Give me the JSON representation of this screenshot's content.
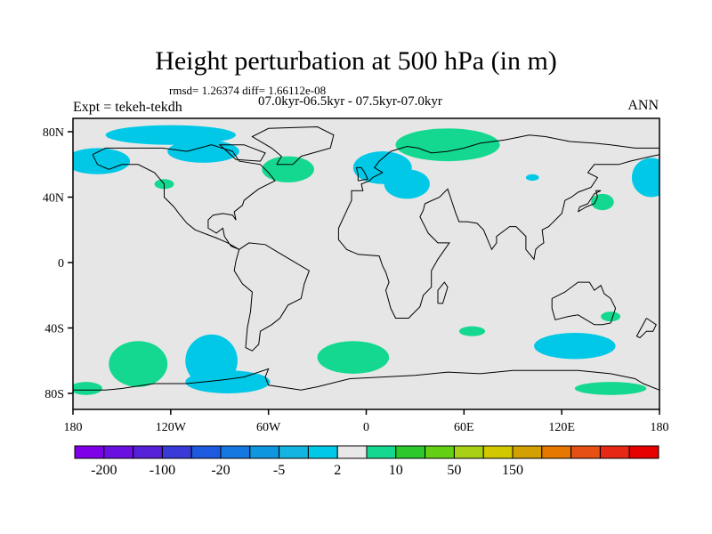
{
  "title": "Height perturbation at 500 hPa (in m)",
  "stats_line": "rmsd= 1.26374 diff= 1.66112e-08",
  "period_line": "07.0kyr-06.5kyr - 07.5kyr-07.0kyr",
  "expt_label": "Expt = tekeh-tekdh",
  "season_label": "ANN",
  "lat_ticks": [
    {
      "value": 80,
      "label": "80N"
    },
    {
      "value": 40,
      "label": "40N"
    },
    {
      "value": 0,
      "label": "0"
    },
    {
      "value": -40,
      "label": "40S"
    },
    {
      "value": -80,
      "label": "80S"
    }
  ],
  "lon_ticks": [
    {
      "value": -180,
      "label": "180"
    },
    {
      "value": -120,
      "label": "120W"
    },
    {
      "value": -60,
      "label": "60W"
    },
    {
      "value": 0,
      "label": "0"
    },
    {
      "value": 60,
      "label": "60E"
    },
    {
      "value": 120,
      "label": "120E"
    },
    {
      "value": 180,
      "label": "180"
    }
  ],
  "colorbar": {
    "colors": [
      "#7f00e6",
      "#6a10e0",
      "#5520d8",
      "#3a3ad8",
      "#1e5ae0",
      "#1478e0",
      "#0f96e0",
      "#14b4e0",
      "#00c8e6",
      "#e8e8e8",
      "#14d890",
      "#2cc82c",
      "#64d014",
      "#a8d014",
      "#d2c800",
      "#d2a000",
      "#e67800",
      "#e65014",
      "#e62814",
      "#e60000"
    ],
    "labels": [
      {
        "index": 1,
        "text": "-200"
      },
      {
        "index": 3,
        "text": "-100"
      },
      {
        "index": 5,
        "text": "-20"
      },
      {
        "index": 7,
        "text": "-5"
      },
      {
        "index": 9,
        "text": "2"
      },
      {
        "index": 11,
        "text": "10"
      },
      {
        "index": 13,
        "text": "50"
      },
      {
        "index": 15,
        "text": "150"
      }
    ]
  },
  "map_colors": {
    "background": "#e6e6e6",
    "negative": "#00c8e6",
    "positive": "#14d890",
    "coast": "#000000"
  },
  "anomaly_regions": [
    {
      "sign": "negative",
      "lon": -120,
      "lat": 78,
      "rlon": 40,
      "rlat": 6
    },
    {
      "sign": "negative",
      "lon": -165,
      "lat": 62,
      "rlon": 20,
      "rlat": 8
    },
    {
      "sign": "negative",
      "lon": -100,
      "lat": 68,
      "rlon": 22,
      "rlat": 7
    },
    {
      "sign": "positive",
      "lon": -48,
      "lat": 57,
      "rlon": 16,
      "rlat": 8
    },
    {
      "sign": "positive",
      "lon": -124,
      "lat": 48,
      "rlon": 6,
      "rlat": 3
    },
    {
      "sign": "negative",
      "lon": 10,
      "lat": 58,
      "rlon": 18,
      "rlat": 10
    },
    {
      "sign": "negative",
      "lon": 25,
      "lat": 48,
      "rlon": 14,
      "rlat": 9
    },
    {
      "sign": "positive",
      "lon": 50,
      "lat": 72,
      "rlon": 32,
      "rlat": 10
    },
    {
      "sign": "negative",
      "lon": 175,
      "lat": 52,
      "rlon": 12,
      "rlat": 12
    },
    {
      "sign": "positive",
      "lon": 145,
      "lat": 37,
      "rlon": 7,
      "rlat": 5
    },
    {
      "sign": "negative",
      "lon": 102,
      "lat": 52,
      "rlon": 4,
      "rlat": 2
    },
    {
      "sign": "positive",
      "lon": -140,
      "lat": -62,
      "rlon": 18,
      "rlat": 14
    },
    {
      "sign": "negative",
      "lon": -95,
      "lat": -60,
      "rlon": 16,
      "rlat": 16
    },
    {
      "sign": "negative",
      "lon": -85,
      "lat": -73,
      "rlon": 26,
      "rlat": 7
    },
    {
      "sign": "positive",
      "lon": -8,
      "lat": -58,
      "rlon": 22,
      "rlat": 10
    },
    {
      "sign": "positive",
      "lon": 65,
      "lat": -42,
      "rlon": 8,
      "rlat": 3
    },
    {
      "sign": "negative",
      "lon": 128,
      "lat": -51,
      "rlon": 25,
      "rlat": 8
    },
    {
      "sign": "positive",
      "lon": 150,
      "lat": -33,
      "rlon": 6,
      "rlat": 3
    },
    {
      "sign": "positive",
      "lon": 150,
      "lat": -77,
      "rlon": 22,
      "rlat": 4
    },
    {
      "sign": "positive",
      "lon": -172,
      "lat": -77,
      "rlon": 10,
      "rlat": 4
    }
  ]
}
